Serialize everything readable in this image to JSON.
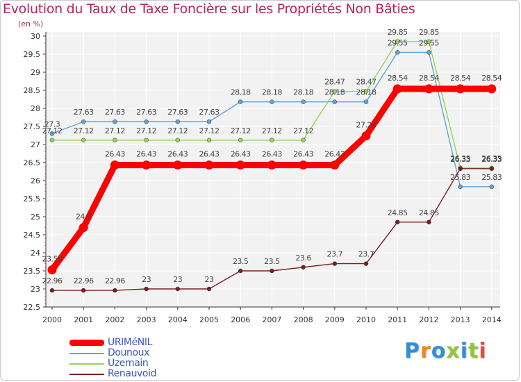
{
  "chart_data": {
    "type": "line",
    "title": "Evolution du Taux de Taxe Foncière sur les Propriétés Non Bâties",
    "ylabel": "(en %)",
    "x": [
      "2000",
      "2001",
      "2002",
      "2003",
      "2004",
      "2005",
      "2006",
      "2007",
      "2008",
      "2009",
      "2010",
      "2011",
      "2012",
      "2013",
      "2014"
    ],
    "ylim": [
      22.5,
      30
    ],
    "yticks": [
      "22.5",
      "23",
      "23.5",
      "24",
      "24.5",
      "25",
      "25.5",
      "26",
      "26.5",
      "27",
      "27.5",
      "28",
      "28.5",
      "29",
      "29.5",
      "30"
    ],
    "series": [
      {
        "name": "URIMéNIL",
        "color": "#ff0000",
        "values": [
          23.53,
          24.7,
          26.43,
          26.43,
          26.43,
          26.43,
          26.43,
          26.43,
          26.43,
          26.43,
          27.24,
          28.54,
          28.54,
          28.54,
          28.54
        ],
        "labels": [
          "23.53",
          "24.7",
          "26.43",
          "26.43",
          "26.43",
          "26.43",
          "26.43",
          "26.43",
          "26.43",
          "26.43",
          "27.24",
          "28.54",
          "28.54",
          "28.54",
          "28.54"
        ]
      },
      {
        "name": "Dounoux",
        "color": "#5ea4dc",
        "values": [
          27.3,
          27.63,
          27.63,
          27.63,
          27.63,
          27.63,
          28.18,
          28.18,
          28.18,
          28.18,
          28.18,
          29.55,
          29.55,
          25.83,
          25.83
        ],
        "labels": [
          "27.3",
          "27.63",
          "27.63",
          "27.63",
          "27.63",
          "27.63",
          "28.18",
          "28.18",
          "28.18",
          "28.18",
          "28.18",
          "29.55",
          "29.55",
          "25.83",
          "25.83"
        ]
      },
      {
        "name": "Uzemain",
        "color": "#94d454",
        "values": [
          27.12,
          27.12,
          27.12,
          27.12,
          27.12,
          27.12,
          27.12,
          27.12,
          27.12,
          28.47,
          28.47,
          29.85,
          29.85,
          26.35,
          26.35
        ],
        "labels": [
          "27.12",
          "27.12",
          "27.12",
          "27.12",
          "27.12",
          "27.12",
          "27.12",
          "27.12",
          "27.12",
          "28.47",
          "28.47",
          "29.85",
          "29.85",
          "26.35",
          "26.35"
        ]
      },
      {
        "name": "Renauvoid",
        "color": "#7a1f1f",
        "values": [
          22.96,
          22.96,
          22.96,
          23,
          23,
          23,
          23.5,
          23.5,
          23.6,
          23.7,
          23.7,
          24.85,
          24.85,
          26.33,
          26.33
        ],
        "labels": [
          "22.96",
          "22.96",
          "22.96",
          "23",
          "23",
          "23",
          "23.5",
          "23.5",
          "23.6",
          "23.7",
          "23.7",
          "24.85",
          "24.85",
          "26.33",
          "26.33"
        ]
      }
    ],
    "legend_position": "bottom-left"
  },
  "logo": {
    "text": "Proxiti",
    "colors": [
      "#2f8fd8",
      "#f08a1c",
      "#2f8fd8",
      "#8fc73a",
      "#2f8fd8",
      "#8fc73a",
      "#e84c3d"
    ]
  }
}
